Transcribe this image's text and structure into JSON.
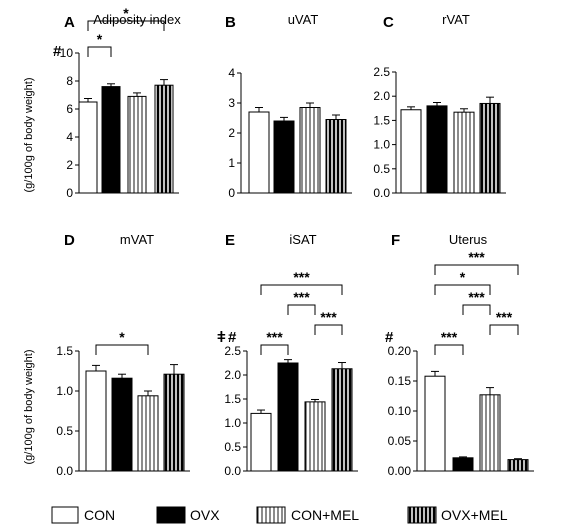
{
  "figure": {
    "ylabel": "(g/100g of body weight)",
    "legend": {
      "placement": "bottom",
      "entries": [
        {
          "label": "CON",
          "fill": "white"
        },
        {
          "label": "OVX",
          "fill": "black"
        },
        {
          "label": "CON+MEL",
          "fill": "vertical-stripes-light"
        },
        {
          "label": "OVX+MEL",
          "fill": "vertical-stripes-dark"
        }
      ]
    }
  },
  "chart_data": [
    {
      "type": "bar",
      "letter": "A",
      "title": "Adiposity index",
      "categories": [
        "CON",
        "OVX",
        "CON+MEL",
        "OVX+MEL"
      ],
      "values": [
        6.5,
        7.6,
        6.9,
        7.7
      ],
      "errors": [
        0.25,
        0.2,
        0.25,
        0.4
      ],
      "ylim": [
        0,
        10
      ],
      "yticks": [
        "0",
        "2",
        "4",
        "6",
        "8",
        "10"
      ],
      "marks": [
        "#"
      ],
      "brackets": [
        {
          "from": 0,
          "to": 1,
          "label": "*"
        },
        {
          "from": 0,
          "to": 3,
          "label": "*"
        }
      ]
    },
    {
      "type": "bar",
      "letter": "B",
      "title": "uVAT",
      "categories": [
        "CON",
        "OVX",
        "CON+MEL",
        "OVX+MEL"
      ],
      "values": [
        2.7,
        2.4,
        2.85,
        2.45
      ],
      "errors": [
        0.15,
        0.12,
        0.15,
        0.15
      ],
      "ylim": [
        0,
        4
      ],
      "yticks": [
        "0",
        "1",
        "2",
        "3",
        "4"
      ],
      "marks": [],
      "brackets": []
    },
    {
      "type": "bar",
      "letter": "C",
      "title": "rVAT",
      "categories": [
        "CON",
        "OVX",
        "CON+MEL",
        "OVX+MEL"
      ],
      "values": [
        1.72,
        1.8,
        1.67,
        1.85
      ],
      "errors": [
        0.06,
        0.07,
        0.07,
        0.13
      ],
      "ylim": [
        0,
        2.5
      ],
      "yticks": [
        "0.0",
        "0.5",
        "1.0",
        "1.5",
        "2.0",
        "2.5"
      ],
      "marks": [],
      "brackets": []
    },
    {
      "type": "bar",
      "letter": "D",
      "title": "mVAT",
      "categories": [
        "CON",
        "OVX",
        "CON+MEL",
        "OVX+MEL"
      ],
      "values": [
        1.25,
        1.16,
        0.94,
        1.21
      ],
      "errors": [
        0.07,
        0.05,
        0.06,
        0.12
      ],
      "ylim": [
        0,
        1.5
      ],
      "yticks": [
        "0.0",
        "0.5",
        "1.0",
        "1.5"
      ],
      "marks": [],
      "brackets": [
        {
          "from": 0,
          "to": 2,
          "label": "*"
        }
      ]
    },
    {
      "type": "bar",
      "letter": "E",
      "title": "iSAT",
      "categories": [
        "CON",
        "OVX",
        "CON+MEL",
        "OVX+MEL"
      ],
      "values": [
        1.2,
        2.25,
        1.44,
        2.13
      ],
      "errors": [
        0.07,
        0.07,
        0.05,
        0.13
      ],
      "ylim": [
        0,
        2.5
      ],
      "yticks": [
        "0.0",
        "0.5",
        "1.0",
        "1.5",
        "2.0",
        "2.5"
      ],
      "marks": [
        "ǂ",
        "#"
      ],
      "brackets": [
        {
          "from": 0,
          "to": 1,
          "label": "***"
        },
        {
          "from": 2,
          "to": 3,
          "label": "***"
        },
        {
          "from": 1,
          "to": 2,
          "label": "***"
        },
        {
          "from": 0,
          "to": 3,
          "label": "***"
        }
      ]
    },
    {
      "type": "bar",
      "letter": "F",
      "title": "Uterus",
      "categories": [
        "CON",
        "OVX",
        "CON+MEL",
        "OVX+MEL"
      ],
      "values": [
        0.158,
        0.022,
        0.127,
        0.019
      ],
      "errors": [
        0.008,
        0.0015,
        0.012,
        0.0015
      ],
      "ylim": [
        0,
        0.2
      ],
      "yticks": [
        "0.00",
        "0.05",
        "0.10",
        "0.15",
        "0.20"
      ],
      "marks": [
        "#"
      ],
      "brackets": [
        {
          "from": 0,
          "to": 1,
          "label": "***"
        },
        {
          "from": 2,
          "to": 3,
          "label": "***"
        },
        {
          "from": 1,
          "to": 2,
          "label": "***"
        },
        {
          "from": 0,
          "to": 2,
          "label": "*"
        },
        {
          "from": 0,
          "to": 3,
          "label": "***"
        }
      ]
    }
  ]
}
